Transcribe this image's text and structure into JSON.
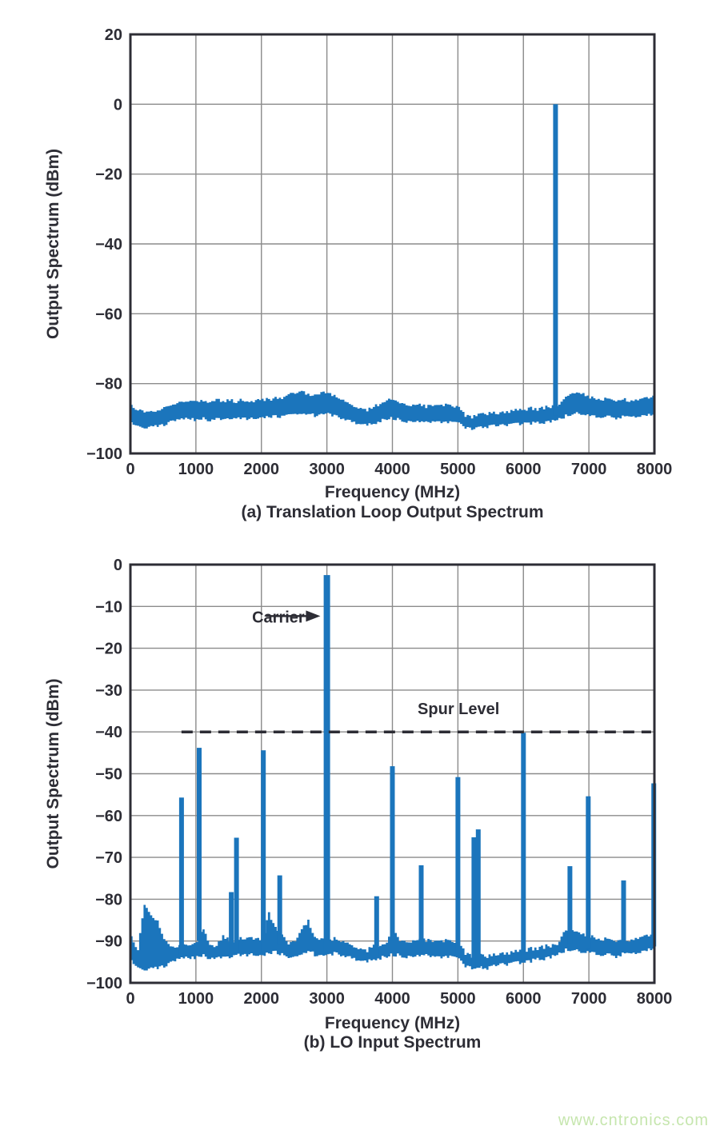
{
  "page": {
    "background": "#ffffff"
  },
  "watermark": {
    "text": "www.cntronics.com",
    "color": "#c6e6ae"
  },
  "style_colors": {
    "bar_blue": "#1b75bc",
    "grid_gray": "#8b8b8b",
    "axis_dark": "#2d2d35",
    "text_dark": "#2d2d35"
  },
  "chart_data": [
    {
      "id": "a",
      "type": "area",
      "title": "(a) Translation Loop Output Spectrum",
      "xlabel": "Frequency (MHz)",
      "ylabel": "Output Spectrum (dBm)",
      "xlim": [
        0,
        8000
      ],
      "ylim": [
        -100,
        20
      ],
      "xticks": [
        0,
        1000,
        2000,
        3000,
        4000,
        5000,
        6000,
        7000,
        8000
      ],
      "yticks": [
        20,
        0,
        -20,
        -40,
        -60,
        -80,
        -100
      ],
      "grid": true,
      "legend": "none",
      "noise_step_mhz": 100,
      "jitter_db": 0.5,
      "noise_top": [
        -86.5,
        -87.5,
        -88.2,
        -88.0,
        -87.6,
        -87.2,
        -86.0,
        -85.4,
        -85.0,
        -84.5,
        -85.0,
        -84.8,
        -85.2,
        -84.4,
        -85.0,
        -84.8,
        -85.1,
        -84.7,
        -85.0,
        -84.8,
        -84.6,
        -84.5,
        -84.2,
        -84.0,
        -83.2,
        -82.6,
        -82.4,
        -83.0,
        -83.4,
        -82.8,
        -82.4,
        -83.6,
        -84.6,
        -85.6,
        -86.6,
        -87.2,
        -87.5,
        -86.8,
        -85.6,
        -84.8,
        -84.3,
        -85.4,
        -86.0,
        -86.4,
        -86.2,
        -86.6,
        -86.3,
        -86.5,
        -86.2,
        -86.5,
        -86.6,
        -89.2,
        -89.6,
        -89.0,
        -88.7,
        -88.3,
        -88.5,
        -88.1,
        -87.8,
        -87.5,
        -87.4,
        -87.1,
        -87.3,
        -86.9,
        -86.6,
        -86.2,
        -84.6,
        -83.2,
        -82.7,
        -83.1,
        -84.0,
        -84.4,
        -84.6,
        -84.3,
        -84.7,
        -84.5,
        -84.8,
        -84.4,
        -84.1,
        -83.8,
        -84.0
      ],
      "noise_bottom": [
        -91.5,
        -92.3,
        -92.8,
        -92.6,
        -92.2,
        -91.8,
        -91.0,
        -90.6,
        -90.3,
        -90.0,
        -90.4,
        -90.1,
        -90.4,
        -89.9,
        -90.2,
        -90.0,
        -90.3,
        -89.9,
        -90.1,
        -90.0,
        -89.8,
        -89.7,
        -89.5,
        -89.3,
        -88.9,
        -88.6,
        -88.5,
        -88.9,
        -89.1,
        -88.7,
        -88.5,
        -89.3,
        -90.0,
        -90.6,
        -91.3,
        -91.7,
        -91.9,
        -91.4,
        -90.7,
        -90.2,
        -89.9,
        -90.5,
        -90.9,
        -91.1,
        -91.0,
        -91.2,
        -91.0,
        -91.1,
        -91.0,
        -91.2,
        -91.2,
        -92.8,
        -93.1,
        -92.7,
        -92.4,
        -92.1,
        -92.3,
        -92.0,
        -91.8,
        -91.6,
        -91.5,
        -91.3,
        -91.4,
        -91.1,
        -90.9,
        -90.6,
        -89.6,
        -88.8,
        -88.4,
        -88.7,
        -89.3,
        -89.6,
        -89.7,
        -89.5,
        -89.8,
        -89.6,
        -89.9,
        -89.5,
        -89.3,
        -89.1,
        -89.2
      ],
      "spurs": [
        {
          "f": 6490,
          "level": 0.0,
          "name": "output-tone"
        }
      ],
      "annotations": []
    },
    {
      "id": "b",
      "type": "area",
      "title": "(b) LO Input Spectrum",
      "xlabel": "Frequency (MHz)",
      "ylabel": "Output Spectrum (dBm)",
      "xlim": [
        0,
        8000
      ],
      "ylim": [
        -100,
        0
      ],
      "xticks": [
        0,
        1000,
        2000,
        3000,
        4000,
        5000,
        6000,
        7000,
        8000
      ],
      "yticks": [
        0,
        -10,
        -20,
        -30,
        -40,
        -50,
        -60,
        -70,
        -80,
        -90,
        -100
      ],
      "grid": true,
      "legend": "none",
      "noise_step_mhz": 100,
      "jitter_db": 0.5,
      "noise_top": [
        -89.3,
        -92.0,
        -81.3,
        -84.0,
        -85.0,
        -90.0,
        -91.0,
        -91.3,
        -90.5,
        -90.6,
        -90.2,
        -86.9,
        -90.8,
        -91.2,
        -88.6,
        -90.0,
        -89.8,
        -89.4,
        -88.8,
        -89.4,
        -89.9,
        -83.2,
        -87.0,
        -88.0,
        -91.0,
        -89.8,
        -87.5,
        -85.0,
        -89.3,
        -89.7,
        -89.9,
        -89.4,
        -90.2,
        -90.6,
        -91.4,
        -92.0,
        -92.2,
        -91.0,
        -90.9,
        -90.4,
        -87.0,
        -89.8,
        -90.1,
        -90.2,
        -89.9,
        -89.8,
        -90.1,
        -90.3,
        -90.0,
        -90.2,
        -90.0,
        -93.0,
        -93.6,
        -93.4,
        -93.7,
        -93.4,
        -93.1,
        -92.9,
        -92.7,
        -92.4,
        -92.2,
        -91.9,
        -91.7,
        -91.4,
        -91.1,
        -90.7,
        -88.0,
        -87.6,
        -87.9,
        -88.6,
        -88.9,
        -89.4,
        -89.7,
        -89.5,
        -89.8,
        -89.4,
        -89.7,
        -89.1,
        -88.8,
        -88.4,
        -88.3
      ],
      "noise_bottom": [
        -95.0,
        -96.5,
        -97.0,
        -96.8,
        -96.5,
        -96.0,
        -95.3,
        -94.6,
        -94.2,
        -94.0,
        -93.8,
        -93.6,
        -93.9,
        -94.0,
        -93.7,
        -93.9,
        -93.6,
        -93.4,
        -93.2,
        -93.4,
        -93.6,
        -93.0,
        -92.8,
        -93.0,
        -94.2,
        -93.6,
        -93.0,
        -92.6,
        -93.2,
        -93.4,
        -93.3,
        -93.0,
        -93.5,
        -93.9,
        -94.4,
        -94.8,
        -95.0,
        -94.3,
        -94.1,
        -93.8,
        -93.2,
        -93.6,
        -93.8,
        -93.9,
        -93.6,
        -93.5,
        -93.8,
        -94.0,
        -93.7,
        -93.9,
        -94.2,
        -96.2,
        -96.6,
        -96.3,
        -96.5,
        -96.2,
        -95.9,
        -95.7,
        -95.5,
        -95.2,
        -95.0,
        -94.7,
        -94.5,
        -94.2,
        -93.9,
        -93.5,
        -92.4,
        -92.0,
        -92.2,
        -92.6,
        -92.8,
        -93.2,
        -93.5,
        -93.3,
        -93.6,
        -93.2,
        -93.4,
        -92.9,
        -92.6,
        -92.2,
        -92.1
      ],
      "spurs": [
        {
          "f": 780,
          "level": -55.7
        },
        {
          "f": 1050,
          "level": -43.8
        },
        {
          "f": 1540,
          "level": -78.3
        },
        {
          "f": 1620,
          "level": -65.3
        },
        {
          "f": 2030,
          "level": -44.4
        },
        {
          "f": 2280,
          "level": -74.3
        },
        {
          "f": 3000,
          "level": -2.5,
          "name": "carrier"
        },
        {
          "f": 3760,
          "level": -79.3
        },
        {
          "f": 4000,
          "level": -48.2
        },
        {
          "f": 4440,
          "level": -71.9
        },
        {
          "f": 5000,
          "level": -50.8
        },
        {
          "f": 5245,
          "level": -65.2
        },
        {
          "f": 5310,
          "level": -63.3
        },
        {
          "f": 6000,
          "level": -40.2
        },
        {
          "f": 6710,
          "level": -72.1
        },
        {
          "f": 6990,
          "level": -55.4
        },
        {
          "f": 7530,
          "level": -75.5
        },
        {
          "f": 7990,
          "level": -52.3
        }
      ],
      "annotations": [
        {
          "type": "label-arrow",
          "text": "Carrier",
          "text_f": 1560,
          "text_dbm": -12.3,
          "arrow_from_f": 2070,
          "arrow_to_f": 2900,
          "arrow_dbm": -12.3
        },
        {
          "type": "threshold-line",
          "text": "Spur Level",
          "dbm": -40,
          "from_f": 780,
          "to_f": 7950,
          "label_f": 5010,
          "label_dbm": -35.8
        }
      ]
    }
  ]
}
